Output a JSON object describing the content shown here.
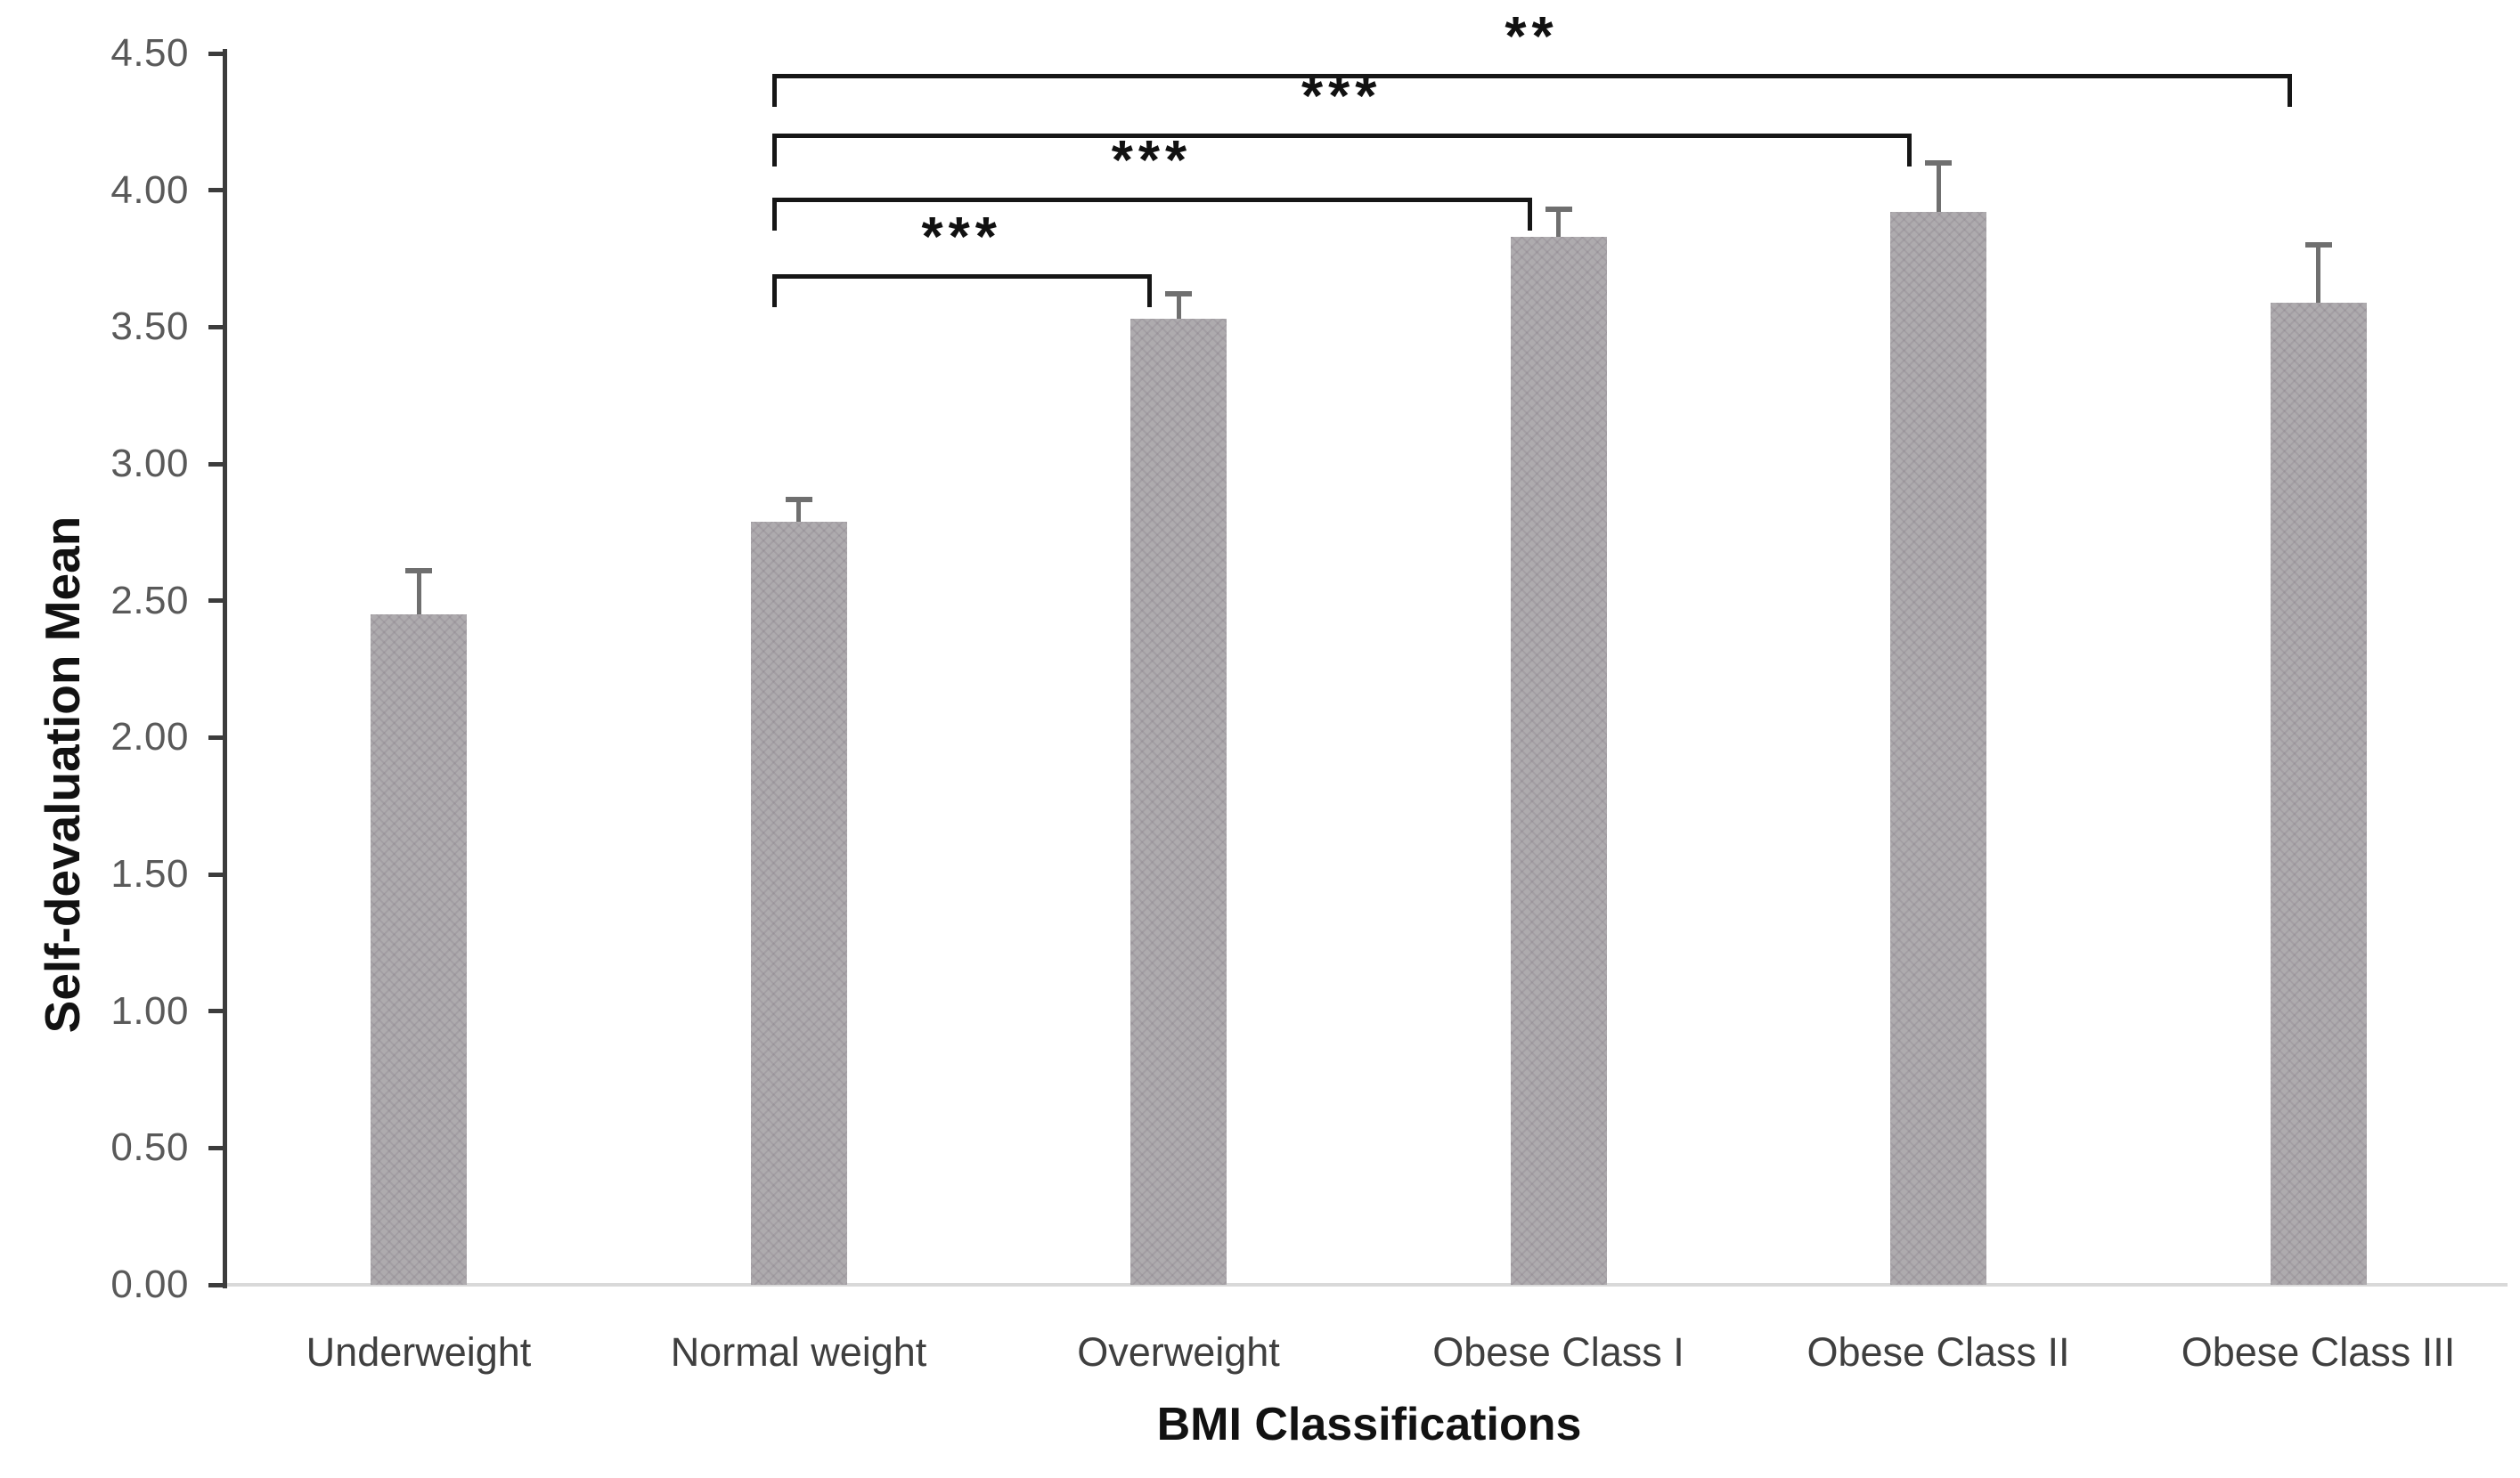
{
  "chart_data": {
    "type": "bar",
    "title": "",
    "ylabel": "Self-devaluation Mean",
    "xlabel": "BMI Classifications",
    "ylim": [
      0.0,
      4.5
    ],
    "ytick_labels": [
      "0.00",
      "0.50",
      "1.00",
      "1.50",
      "2.00",
      "2.50",
      "3.00",
      "3.50",
      "4.00",
      "4.50"
    ],
    "grid": "off",
    "legend": "none",
    "bar_color": "#aeabae",
    "error_bar_color": "#6f6f6f",
    "categories": [
      "Underweight",
      "Normal weight",
      "Overweight",
      "Obese Class I",
      "Obese Class II",
      "Obese Class III"
    ],
    "values": [
      2.45,
      2.79,
      3.53,
      3.83,
      3.92,
      3.59
    ],
    "errors_plus": [
      0.16,
      0.08,
      0.09,
      0.1,
      0.18,
      0.21
    ],
    "significance_brackets": [
      {
        "from": "Normal weight",
        "to": "Overweight",
        "label": "***"
      },
      {
        "from": "Normal weight",
        "to": "Obese Class I",
        "label": "***"
      },
      {
        "from": "Normal weight",
        "to": "Obese Class II",
        "label": "***"
      },
      {
        "from": "Normal weight",
        "to": "Obese Class III",
        "label": "**"
      }
    ]
  }
}
